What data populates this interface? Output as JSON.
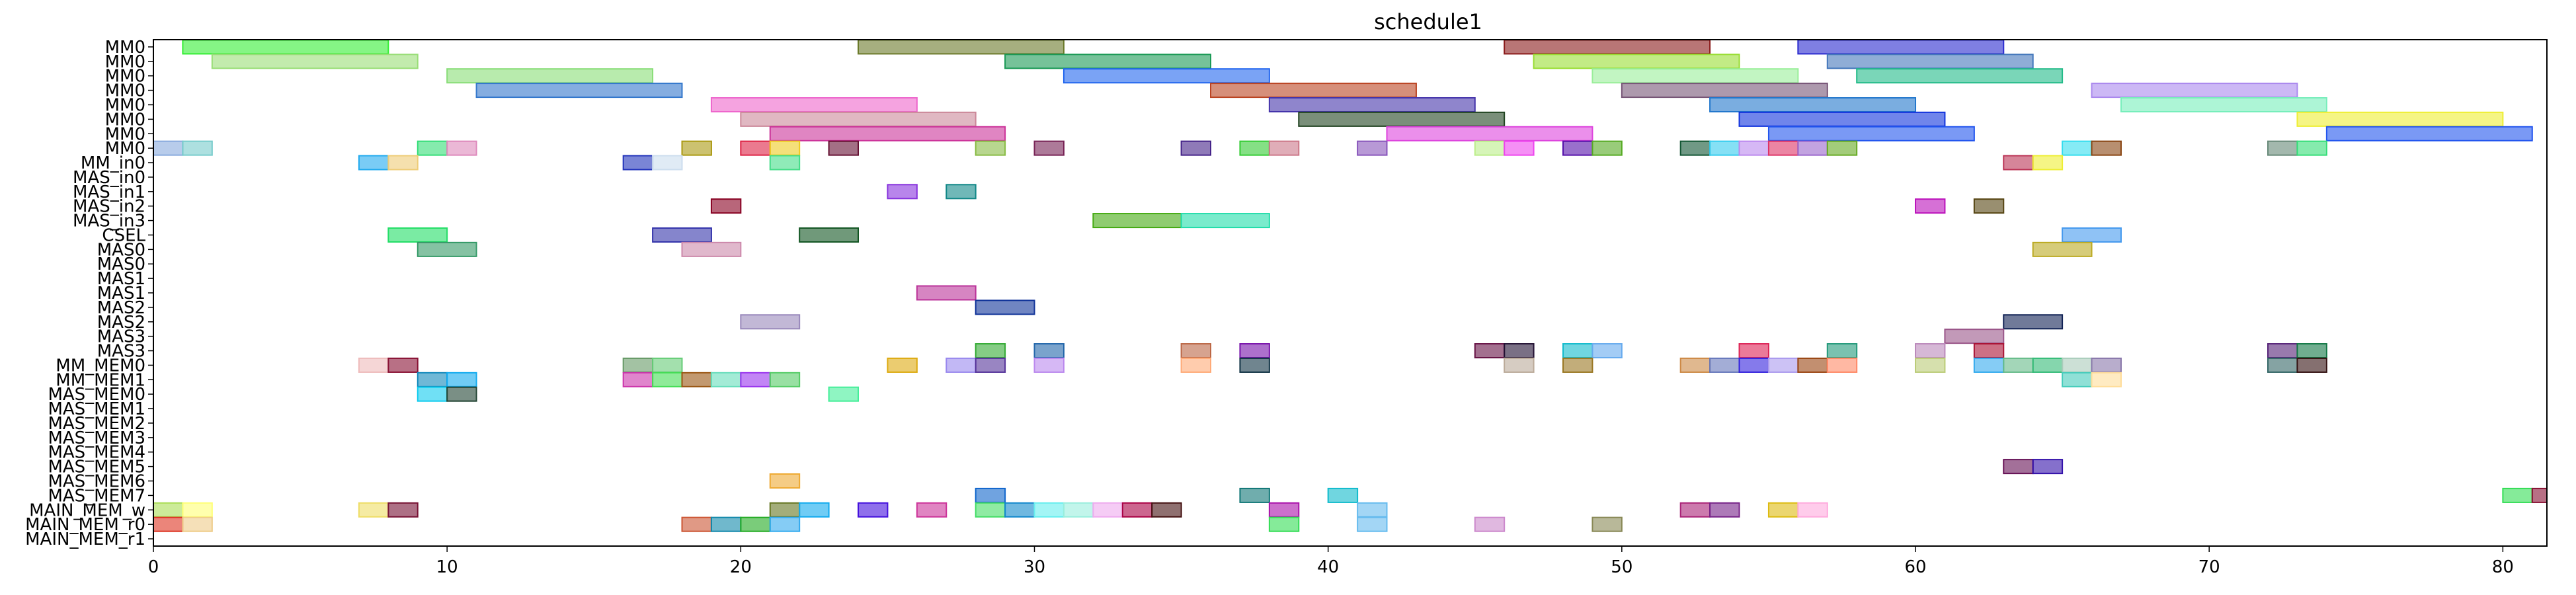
{
  "chart_data": {
    "type": "gantt",
    "title": "schedule1",
    "xlim": [
      0,
      81.5
    ],
    "x_ticks": [
      0,
      10,
      20,
      30,
      40,
      50,
      60,
      70,
      80
    ],
    "grid": false,
    "rows": [
      "MM0",
      "MM0",
      "MM0",
      "MM0",
      "MM0",
      "MM0",
      "MM0",
      "MM0",
      "MM_in0",
      "MAS_in0",
      "MAS_in1",
      "MAS_in2",
      "MAS_in3",
      "CSEL",
      "MAS0",
      "MAS0",
      "MAS1",
      "MAS1",
      "MAS2",
      "MAS2",
      "MAS3",
      "MAS3",
      "MM_MEM0",
      "MM_MEM1",
      "MAS_MEM0",
      "MAS_MEM1",
      "MAS_MEM2",
      "MAS_MEM3",
      "MAS_MEM4",
      "MAS_MEM5",
      "MAS_MEM6",
      "MAS_MEM7",
      "MAIN_MEM_w",
      "MAIN_MEM_r0",
      "MAIN_MEM_r1"
    ],
    "bars": [
      {
        "row": 0,
        "start": 1,
        "end": 8,
        "color": "#33ee33"
      },
      {
        "row": 0,
        "start": 24,
        "end": 31,
        "color": "#6b7a2a"
      },
      {
        "row": 0,
        "start": 46,
        "end": 53,
        "color": "#8b1a1a"
      },
      {
        "row": 0,
        "start": 56,
        "end": 63,
        "color": "#2a2acf"
      },
      {
        "row": 1,
        "start": 2,
        "end": 9,
        "color": "#99dd77"
      },
      {
        "row": 1,
        "start": 29,
        "end": 36,
        "color": "#1a9955"
      },
      {
        "row": 1,
        "start": 47,
        "end": 54,
        "color": "#99dd33"
      },
      {
        "row": 1,
        "start": 57,
        "end": 64,
        "color": "#4477bb"
      },
      {
        "row": 2,
        "start": 10,
        "end": 17,
        "color": "#88dd77"
      },
      {
        "row": 2,
        "start": 31,
        "end": 38,
        "color": "#2266ee"
      },
      {
        "row": 2,
        "start": 49,
        "end": 56,
        "color": "#99ee99"
      },
      {
        "row": 2,
        "start": 58,
        "end": 65,
        "color": "#22bb88"
      },
      {
        "row": 3,
        "start": 11,
        "end": 18,
        "color": "#3377cc"
      },
      {
        "row": 3,
        "start": 36,
        "end": 43,
        "color": "#bb4422"
      },
      {
        "row": 3,
        "start": 50,
        "end": 57,
        "color": "#775577"
      },
      {
        "row": 3,
        "start": 66,
        "end": 73,
        "color": "#aa88ee"
      },
      {
        "row": 4,
        "start": 19,
        "end": 26,
        "color": "#ee66cc"
      },
      {
        "row": 4,
        "start": 38,
        "end": 45,
        "color": "#4433aa"
      },
      {
        "row": 4,
        "start": 53,
        "end": 60,
        "color": "#2277cc"
      },
      {
        "row": 4,
        "start": 67,
        "end": 74,
        "color": "#77eebb"
      },
      {
        "row": 5,
        "start": 20,
        "end": 28,
        "color": "#cc8899"
      },
      {
        "row": 5,
        "start": 39,
        "end": 46,
        "color": "#224422"
      },
      {
        "row": 5,
        "start": 54,
        "end": 61,
        "color": "#1133dd"
      },
      {
        "row": 5,
        "start": 73,
        "end": 80,
        "color": "#eeee33"
      },
      {
        "row": 6,
        "start": 21,
        "end": 29,
        "color": "#cc3399"
      },
      {
        "row": 6,
        "start": 42,
        "end": 49,
        "color": "#dd44dd"
      },
      {
        "row": 6,
        "start": 55,
        "end": 62,
        "color": "#2255ee"
      },
      {
        "row": 6,
        "start": 74,
        "end": 81,
        "color": "#2255ee"
      },
      {
        "row": 7,
        "start": 0,
        "end": 1,
        "color": "#88aadd"
      },
      {
        "row": 7,
        "start": 1,
        "end": 2,
        "color": "#77cccc"
      },
      {
        "row": 7,
        "start": 9,
        "end": 10,
        "color": "#33dd77"
      },
      {
        "row": 7,
        "start": 10,
        "end": 11,
        "color": "#dd88bb"
      },
      {
        "row": 7,
        "start": 18,
        "end": 19,
        "color": "#aa9911"
      },
      {
        "row": 7,
        "start": 20,
        "end": 21,
        "color": "#dd2244"
      },
      {
        "row": 7,
        "start": 21,
        "end": 22,
        "color": "#eecc22"
      },
      {
        "row": 7,
        "start": 23,
        "end": 24,
        "color": "#661133"
      },
      {
        "row": 7,
        "start": 28,
        "end": 29,
        "color": "#88bb44"
      },
      {
        "row": 7,
        "start": 30,
        "end": 31,
        "color": "#772255"
      },
      {
        "row": 7,
        "start": 35,
        "end": 36,
        "color": "#442288"
      },
      {
        "row": 7,
        "start": 37,
        "end": 38,
        "color": "#33cc33"
      },
      {
        "row": 7,
        "start": 38,
        "end": 39,
        "color": "#cc7788"
      },
      {
        "row": 7,
        "start": 41,
        "end": 42,
        "color": "#8855bb"
      },
      {
        "row": 7,
        "start": 45,
        "end": 46,
        "color": "#bbee88"
      },
      {
        "row": 7,
        "start": 46,
        "end": 47,
        "color": "#ee44ee"
      },
      {
        "row": 7,
        "start": 48,
        "end": 49,
        "color": "#5511aa"
      },
      {
        "row": 7,
        "start": 49,
        "end": 50,
        "color": "#55aa22"
      },
      {
        "row": 7,
        "start": 52,
        "end": 53,
        "color": "#115533"
      },
      {
        "row": 7,
        "start": 53,
        "end": 54,
        "color": "#33ccee"
      },
      {
        "row": 7,
        "start": 54,
        "end": 55,
        "color": "#bb88ee"
      },
      {
        "row": 7,
        "start": 55,
        "end": 56,
        "color": "#dd3366"
      },
      {
        "row": 7,
        "start": 56,
        "end": 57,
        "color": "#9966cc"
      },
      {
        "row": 7,
        "start": 57,
        "end": 58,
        "color": "#66aa22"
      },
      {
        "row": 7,
        "start": 65,
        "end": 66,
        "color": "#33ddee"
      },
      {
        "row": 7,
        "start": 66,
        "end": 67,
        "color": "#884411"
      },
      {
        "row": 7,
        "start": 72,
        "end": 73,
        "color": "#668877"
      },
      {
        "row": 7,
        "start": 73,
        "end": 74,
        "color": "#33dd77"
      },
      {
        "row": 8,
        "start": 7,
        "end": 8,
        "color": "#22aaee"
      },
      {
        "row": 8,
        "start": 8,
        "end": 9,
        "color": "#eecc77"
      },
      {
        "row": 8,
        "start": 16,
        "end": 17,
        "color": "#2233bb"
      },
      {
        "row": 8,
        "start": 17,
        "end": 18,
        "color": "#ccddee"
      },
      {
        "row": 8,
        "start": 21,
        "end": 22,
        "color": "#44dd88"
      },
      {
        "row": 8,
        "start": 63,
        "end": 64,
        "color": "#bb3355"
      },
      {
        "row": 8,
        "start": 64,
        "end": 65,
        "color": "#eeee33"
      },
      {
        "row": 10,
        "start": 25,
        "end": 26,
        "color": "#8833dd"
      },
      {
        "row": 10,
        "start": 27,
        "end": 28,
        "color": "#118888"
      },
      {
        "row": 11,
        "start": 19,
        "end": 20,
        "color": "#880022"
      },
      {
        "row": 11,
        "start": 60,
        "end": 61,
        "color": "#bb11bb"
      },
      {
        "row": 11,
        "start": 62,
        "end": 63,
        "color": "#554411"
      },
      {
        "row": 12,
        "start": 32,
        "end": 35,
        "color": "#44aa11"
      },
      {
        "row": 12,
        "start": 35,
        "end": 38,
        "color": "#22ddaa"
      },
      {
        "row": 13,
        "start": 8,
        "end": 10,
        "color": "#22dd66"
      },
      {
        "row": 13,
        "start": 17,
        "end": 19,
        "color": "#3333aa"
      },
      {
        "row": 13,
        "start": 22,
        "end": 24,
        "color": "#115522"
      },
      {
        "row": 13,
        "start": 65,
        "end": 67,
        "color": "#4499ee"
      },
      {
        "row": 14,
        "start": 9,
        "end": 11,
        "color": "#339966"
      },
      {
        "row": 14,
        "start": 18,
        "end": 20,
        "color": "#cc88aa"
      },
      {
        "row": 14,
        "start": 64,
        "end": 66,
        "color": "#bbaa22"
      },
      {
        "row": 17,
        "start": 26,
        "end": 28,
        "color": "#bb3399"
      },
      {
        "row": 18,
        "start": 28,
        "end": 30,
        "color": "#113399"
      },
      {
        "row": 19,
        "start": 20,
        "end": 22,
        "color": "#9988bb"
      },
      {
        "row": 19,
        "start": 63,
        "end": 65,
        "color": "#112255"
      },
      {
        "row": 20,
        "start": 61,
        "end": 63,
        "color": "#995588"
      },
      {
        "row": 21,
        "start": 28,
        "end": 29,
        "color": "#33aa33"
      },
      {
        "row": 21,
        "start": 30,
        "end": 31,
        "color": "#2266aa"
      },
      {
        "row": 21,
        "start": 35,
        "end": 36,
        "color": "#bb6644"
      },
      {
        "row": 21,
        "start": 37,
        "end": 38,
        "color": "#7711aa"
      },
      {
        "row": 21,
        "start": 45,
        "end": 46,
        "color": "#661144"
      },
      {
        "row": 21,
        "start": 46,
        "end": 47,
        "color": "#221133"
      },
      {
        "row": 21,
        "start": 48,
        "end": 49,
        "color": "#11bbcc"
      },
      {
        "row": 21,
        "start": 49,
        "end": 50,
        "color": "#66aaee"
      },
      {
        "row": 21,
        "start": 54,
        "end": 55,
        "color": "#dd2255"
      },
      {
        "row": 21,
        "start": 57,
        "end": 58,
        "color": "#22997a"
      },
      {
        "row": 21,
        "start": 60,
        "end": 61,
        "color": "#bb88bb"
      },
      {
        "row": 21,
        "start": 62,
        "end": 63,
        "color": "#aa1133"
      },
      {
        "row": 21,
        "start": 72,
        "end": 73,
        "color": "#552277"
      },
      {
        "row": 21,
        "start": 73,
        "end": 74,
        "color": "#117744"
      },
      {
        "row": 22,
        "start": 7,
        "end": 8,
        "color": "#eebbbb"
      },
      {
        "row": 22,
        "start": 8,
        "end": 9,
        "color": "#881133"
      },
      {
        "row": 22,
        "start": 16,
        "end": 17,
        "color": "#669966"
      },
      {
        "row": 22,
        "start": 17,
        "end": 18,
        "color": "#66cc77"
      },
      {
        "row": 22,
        "start": 25,
        "end": 26,
        "color": "#ddaa11"
      },
      {
        "row": 22,
        "start": 27,
        "end": 28,
        "color": "#9988ee"
      },
      {
        "row": 22,
        "start": 28,
        "end": 29,
        "color": "#553399"
      },
      {
        "row": 22,
        "start": 30,
        "end": 31,
        "color": "#bb88ee"
      },
      {
        "row": 22,
        "start": 35,
        "end": 36,
        "color": "#ffaa77"
      },
      {
        "row": 22,
        "start": 37,
        "end": 38,
        "color": "#113344"
      },
      {
        "row": 22,
        "start": 46,
        "end": 47,
        "color": "#bbaa99"
      },
      {
        "row": 22,
        "start": 48,
        "end": 49,
        "color": "#997722"
      },
      {
        "row": 22,
        "start": 52,
        "end": 53,
        "color": "#cc8844"
      },
      {
        "row": 22,
        "start": 53,
        "end": 54,
        "color": "#6677bb"
      },
      {
        "row": 22,
        "start": 54,
        "end": 55,
        "color": "#3322dd"
      },
      {
        "row": 22,
        "start": 55,
        "end": 56,
        "color": "#aa99ee"
      },
      {
        "row": 22,
        "start": 56,
        "end": 57,
        "color": "#994411"
      },
      {
        "row": 22,
        "start": 57,
        "end": 58,
        "color": "#ff8866"
      },
      {
        "row": 22,
        "start": 60,
        "end": 61,
        "color": "#bbcc77"
      },
      {
        "row": 22,
        "start": 62,
        "end": 63,
        "color": "#33aaee"
      },
      {
        "row": 22,
        "start": 63,
        "end": 64,
        "color": "#66bb88"
      },
      {
        "row": 22,
        "start": 64,
        "end": 65,
        "color": "#33bb77"
      },
      {
        "row": 22,
        "start": 65,
        "end": 66,
        "color": "#aaccbb"
      },
      {
        "row": 22,
        "start": 66,
        "end": 67,
        "color": "#8877aa"
      },
      {
        "row": 22,
        "start": 72,
        "end": 73,
        "color": "#336666"
      },
      {
        "row": 22,
        "start": 73,
        "end": 74,
        "color": "#331111"
      },
      {
        "row": 23,
        "start": 9,
        "end": 10,
        "color": "#1188bb"
      },
      {
        "row": 23,
        "start": 10,
        "end": 11,
        "color": "#11aaee"
      },
      {
        "row": 23,
        "start": 16,
        "end": 17,
        "color": "#cc33aa"
      },
      {
        "row": 23,
        "start": 17,
        "end": 18,
        "color": "#44dd55"
      },
      {
        "row": 23,
        "start": 18,
        "end": 19,
        "color": "#995511"
      },
      {
        "row": 23,
        "start": 19,
        "end": 20,
        "color": "#66ddbb"
      },
      {
        "row": 23,
        "start": 20,
        "end": 21,
        "color": "#9933ee"
      },
      {
        "row": 23,
        "start": 21,
        "end": 22,
        "color": "#55cc66"
      },
      {
        "row": 23,
        "start": 65,
        "end": 66,
        "color": "#44ccbb"
      },
      {
        "row": 23,
        "start": 66,
        "end": 67,
        "color": "#ffdd99"
      },
      {
        "row": 24,
        "start": 9,
        "end": 10,
        "color": "#11ccee"
      },
      {
        "row": 24,
        "start": 10,
        "end": 11,
        "color": "#224433"
      },
      {
        "row": 24,
        "start": 23,
        "end": 24,
        "color": "#44ee99"
      },
      {
        "row": 29,
        "start": 63,
        "end": 64,
        "color": "#661155"
      },
      {
        "row": 29,
        "start": 64,
        "end": 65,
        "color": "#3311aa"
      },
      {
        "row": 30,
        "start": 21,
        "end": 22,
        "color": "#eeaa33"
      },
      {
        "row": 31,
        "start": 28,
        "end": 29,
        "color": "#1166cc"
      },
      {
        "row": 31,
        "start": 37,
        "end": 38,
        "color": "#117777"
      },
      {
        "row": 31,
        "start": 40,
        "end": 41,
        "color": "#11bbcc"
      },
      {
        "row": 31,
        "start": 80,
        "end": 81,
        "color": "#33dd55"
      },
      {
        "row": 31,
        "start": 81,
        "end": 82,
        "color": "#881133"
      },
      {
        "row": 32,
        "start": 0,
        "end": 1,
        "color": "#aadd55"
      },
      {
        "row": 32,
        "start": 1,
        "end": 2,
        "color": "#ffff77"
      },
      {
        "row": 32,
        "start": 7,
        "end": 8,
        "color": "#eedd66"
      },
      {
        "row": 32,
        "start": 8,
        "end": 9,
        "color": "#771133"
      },
      {
        "row": 32,
        "start": 21,
        "end": 22,
        "color": "#667722"
      },
      {
        "row": 32,
        "start": 22,
        "end": 23,
        "color": "#11aaee"
      },
      {
        "row": 32,
        "start": 24,
        "end": 25,
        "color": "#4411dd"
      },
      {
        "row": 32,
        "start": 26,
        "end": 27,
        "color": "#cc3399"
      },
      {
        "row": 32,
        "start": 28,
        "end": 29,
        "color": "#44dd66"
      },
      {
        "row": 32,
        "start": 29,
        "end": 30,
        "color": "#1188cc"
      },
      {
        "row": 32,
        "start": 30,
        "end": 31,
        "color": "#66eeee"
      },
      {
        "row": 32,
        "start": 31,
        "end": 32,
        "color": "#99eedd"
      },
      {
        "row": 32,
        "start": 32,
        "end": 33,
        "color": "#eeaaee"
      },
      {
        "row": 32,
        "start": 33,
        "end": 34,
        "color": "#aa0044"
      },
      {
        "row": 32,
        "start": 34,
        "end": 35,
        "color": "#441111"
      },
      {
        "row": 32,
        "start": 38,
        "end": 39,
        "color": "#aa11aa"
      },
      {
        "row": 32,
        "start": 41,
        "end": 42,
        "color": "#66bbee"
      },
      {
        "row": 32,
        "start": 52,
        "end": 53,
        "color": "#aa2277"
      },
      {
        "row": 32,
        "start": 53,
        "end": 54,
        "color": "#772288"
      },
      {
        "row": 32,
        "start": 55,
        "end": 56,
        "color": "#ddbb11"
      },
      {
        "row": 32,
        "start": 56,
        "end": 57,
        "color": "#ffaadd"
      },
      {
        "row": 33,
        "start": 0,
        "end": 1,
        "color": "#dd3322"
      },
      {
        "row": 33,
        "start": 1,
        "end": 2,
        "color": "#eecc88"
      },
      {
        "row": 33,
        "start": 18,
        "end": 19,
        "color": "#cc5533"
      },
      {
        "row": 33,
        "start": 19,
        "end": 20,
        "color": "#1188aa"
      },
      {
        "row": 33,
        "start": 20,
        "end": 21,
        "color": "#22aa22"
      },
      {
        "row": 33,
        "start": 21,
        "end": 22,
        "color": "#33aaee"
      },
      {
        "row": 33,
        "start": 38,
        "end": 39,
        "color": "#33dd55"
      },
      {
        "row": 33,
        "start": 41,
        "end": 42,
        "color": "#66bbee"
      },
      {
        "row": 33,
        "start": 45,
        "end": 46,
        "color": "#cc88cc"
      },
      {
        "row": 33,
        "start": 49,
        "end": 50,
        "color": "#888855"
      }
    ]
  }
}
